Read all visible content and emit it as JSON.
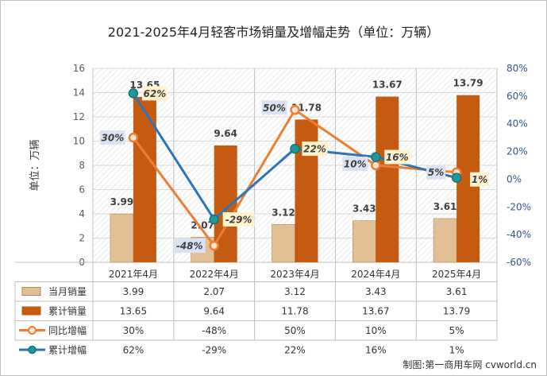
{
  "chart_data": {
    "type": "bar+line combo with data table",
    "title": "2021-2025年4月轻客市场销量及增幅走势（单位：万辆）",
    "ylabel": "单位：万辆",
    "ylim": [
      0,
      16
    ],
    "y_ticks": [
      "0",
      "2",
      "4",
      "6",
      "8",
      "10",
      "12",
      "14",
      "16"
    ],
    "y2lim": [
      -60,
      80
    ],
    "y2_ticks": [
      "-60%",
      "-40%",
      "-20%",
      "0%",
      "20%",
      "40%",
      "60%",
      "80%"
    ],
    "categories": [
      "2021年4月",
      "2022年4月",
      "2023年4月",
      "2024年4月",
      "2025年4月"
    ],
    "bar_series": [
      {
        "name": "当月销量",
        "color": "#e2bf94",
        "values": [
          3.99,
          2.07,
          3.12,
          3.43,
          3.61
        ],
        "labels": [
          "3.99",
          "2.07",
          "3.12",
          "3.43",
          "3.61"
        ],
        "table": [
          "3.99",
          "2.07",
          "3.12",
          "3.43",
          "3.61"
        ]
      },
      {
        "name": "累计销量",
        "color": "#c55a11",
        "values": [
          13.65,
          9.64,
          11.78,
          13.67,
          13.79
        ],
        "labels": [
          "13.65",
          "9.64",
          "11.78",
          "13.67",
          "13.79"
        ],
        "table": [
          "13.65",
          "9.64",
          "11.78",
          "13.67",
          "13.79"
        ]
      }
    ],
    "line_series": [
      {
        "name": "同比增幅",
        "color": "#ed7d31",
        "values": [
          30,
          -48,
          50,
          10,
          5
        ],
        "labels": [
          "30%",
          "-48%",
          "50%",
          "10%",
          "5%"
        ],
        "table": [
          "30%",
          "-48%",
          "50%",
          "10%",
          "5%"
        ]
      },
      {
        "name": "累计增幅",
        "color": "#2e75b6",
        "values": [
          62,
          -29,
          22,
          16,
          1
        ],
        "labels": [
          "62%",
          "-29%",
          "22%",
          "16%",
          "1%"
        ],
        "table": [
          "62%",
          "-29%",
          "22%",
          "16%",
          "1%"
        ]
      }
    ],
    "grid": true
  },
  "watermark": "制图:第一商用车网 cvworld.cn"
}
